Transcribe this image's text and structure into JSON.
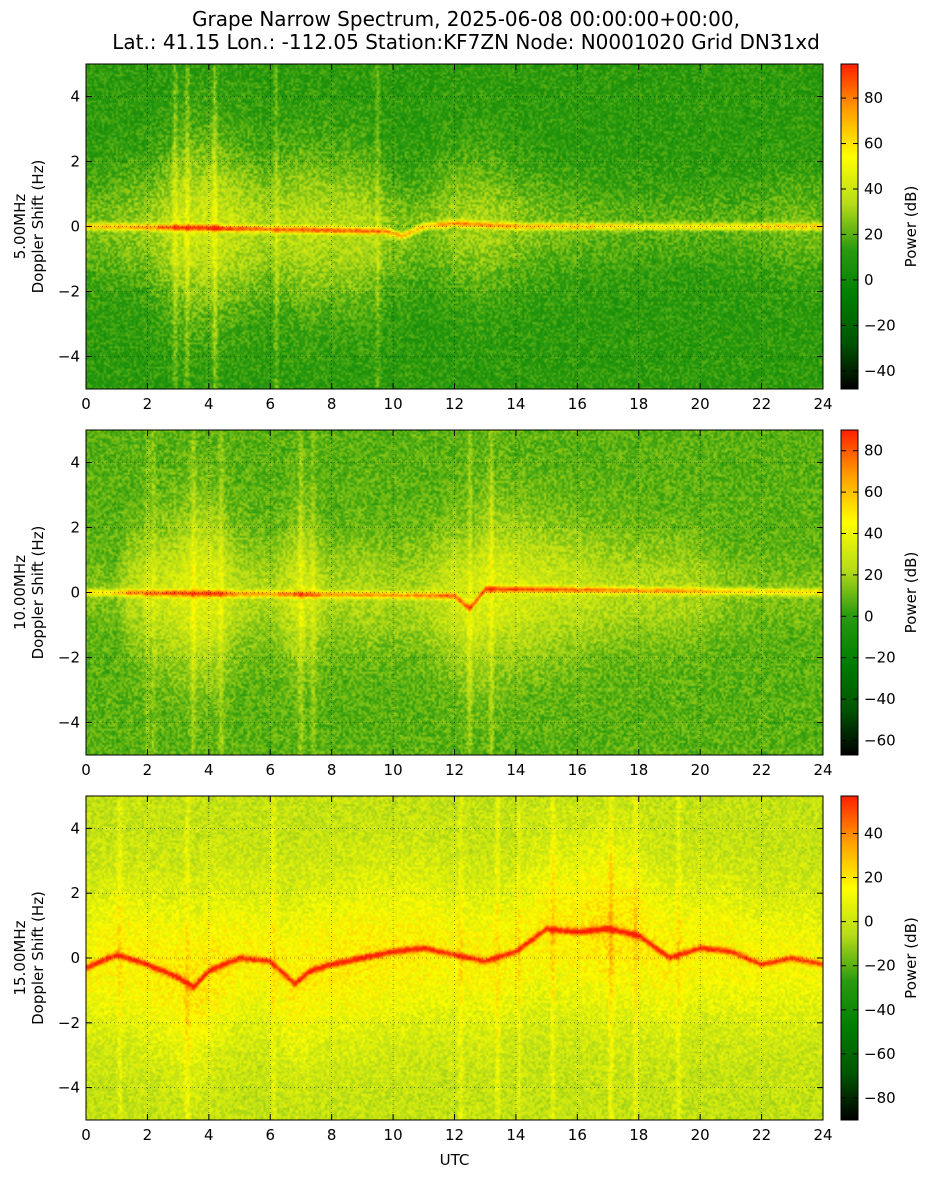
{
  "title_line1": "Grape Narrow Spectrum, 2025-06-08 00:00:00+00:00,",
  "title_line2": "Lat.: 41.15 Lon.: -112.05 Station:KF7ZN Node: N0001020 Grid DN31xd",
  "colors": {
    "colormap": [
      "#000000",
      "#005500",
      "#007e00",
      "#2a9a10",
      "#b7dc18",
      "#ffff00",
      "#ffa000",
      "#ff2000"
    ],
    "background": "#ffffff",
    "axis": "#000000",
    "grid": "#000000"
  },
  "chart_data": [
    {
      "type": "heatmap",
      "panel_label": "5.00MHz",
      "ylabel": "Doppler Shift (Hz)",
      "xlabel": "",
      "xlim": [
        0,
        24
      ],
      "ylim": [
        -5,
        5
      ],
      "xticks": [
        0,
        2,
        4,
        6,
        8,
        10,
        12,
        14,
        16,
        18,
        20,
        22,
        24
      ],
      "yticks": [
        -4,
        -2,
        0,
        2,
        4
      ],
      "grid": true,
      "colorbar": {
        "label": "Power (dB)",
        "range": [
          -48,
          95
        ],
        "ticks": [
          -40,
          -20,
          0,
          20,
          40,
          60,
          80
        ]
      },
      "features": {
        "background_level": 12,
        "carrier_level": 50,
        "activity": [
          [
            0,
            0.45
          ],
          [
            1,
            0.5
          ],
          [
            2,
            0.6
          ],
          [
            3,
            0.9
          ],
          [
            4,
            1.0
          ],
          [
            5,
            0.85
          ],
          [
            6,
            0.7
          ],
          [
            7,
            0.85
          ],
          [
            8,
            0.8
          ],
          [
            9,
            0.8
          ],
          [
            10,
            0.55
          ],
          [
            11,
            0.45
          ],
          [
            12,
            0.65
          ],
          [
            13,
            0.7
          ],
          [
            14,
            0.55
          ],
          [
            15,
            0.45
          ],
          [
            16,
            0.4
          ],
          [
            17,
            0.35
          ],
          [
            18,
            0.3
          ],
          [
            19,
            0.3
          ],
          [
            20,
            0.3
          ],
          [
            21,
            0.3
          ],
          [
            22,
            0.35
          ],
          [
            23,
            0.45
          ],
          [
            24,
            0.4
          ]
        ],
        "carrier_offset": [
          [
            0,
            0
          ],
          [
            4,
            -0.05
          ],
          [
            9.8,
            -0.15
          ],
          [
            10.3,
            -0.3
          ],
          [
            11,
            0
          ],
          [
            12,
            0.1
          ],
          [
            14,
            0
          ],
          [
            24,
            0
          ]
        ],
        "vertical_streaks": [
          2.9,
          3.3,
          4.2,
          6.2,
          9.5
        ]
      }
    },
    {
      "type": "heatmap",
      "panel_label": "10.00MHz",
      "ylabel": "Doppler Shift (Hz)",
      "xlabel": "",
      "xlim": [
        0,
        24
      ],
      "ylim": [
        -5,
        5
      ],
      "xticks": [
        0,
        2,
        4,
        6,
        8,
        10,
        12,
        14,
        16,
        18,
        20,
        22,
        24
      ],
      "yticks": [
        -4,
        -2,
        0,
        2,
        4
      ],
      "grid": true,
      "colorbar": {
        "label": "Power (dB)",
        "range": [
          -67,
          90
        ],
        "ticks": [
          -60,
          -40,
          -20,
          0,
          20,
          40,
          60,
          80
        ]
      },
      "features": {
        "background_level": 8,
        "carrier_level": 48,
        "activity": [
          [
            0,
            0.2
          ],
          [
            1,
            0.2
          ],
          [
            1.4,
            0.55
          ],
          [
            2,
            0.6
          ],
          [
            3,
            0.8
          ],
          [
            4,
            0.95
          ],
          [
            5,
            0.55
          ],
          [
            6,
            0.45
          ],
          [
            7,
            0.8
          ],
          [
            8,
            0.45
          ],
          [
            9,
            0.5
          ],
          [
            10,
            0.45
          ],
          [
            11,
            0.5
          ],
          [
            12,
            0.75
          ],
          [
            13,
            0.85
          ],
          [
            14,
            0.8
          ],
          [
            15,
            0.7
          ],
          [
            16,
            0.65
          ],
          [
            17,
            0.55
          ],
          [
            18,
            0.5
          ],
          [
            19,
            0.5
          ],
          [
            20,
            0.45
          ],
          [
            21,
            0.25
          ],
          [
            22,
            0.2
          ],
          [
            24,
            0.2
          ]
        ],
        "carrier_offset": [
          [
            0,
            0
          ],
          [
            12,
            -0.1
          ],
          [
            12.5,
            -0.5
          ],
          [
            13,
            0.1
          ],
          [
            14,
            0.1
          ],
          [
            24,
            0
          ]
        ],
        "vertical_streaks": [
          2.0,
          2.2,
          3.5,
          4.4,
          7.0,
          7.4,
          12.5,
          13.2
        ]
      }
    },
    {
      "type": "heatmap",
      "panel_label": "15.00MHz",
      "ylabel": "Doppler Shift (Hz)",
      "xlabel": "UTC",
      "xlim": [
        0,
        24
      ],
      "ylim": [
        -5,
        5
      ],
      "xticks": [
        0,
        2,
        4,
        6,
        8,
        10,
        12,
        14,
        16,
        18,
        20,
        22,
        24
      ],
      "yticks": [
        -4,
        -2,
        0,
        2,
        4
      ],
      "grid": true,
      "colorbar": {
        "label": "Power (dB)",
        "range": [
          -90,
          57
        ],
        "ticks": [
          -80,
          -60,
          -40,
          -20,
          0,
          20,
          40
        ]
      },
      "features": {
        "background_level": -2,
        "carrier_level": 30,
        "activity": [
          [
            0,
            0.7
          ],
          [
            1,
            0.75
          ],
          [
            2,
            0.8
          ],
          [
            3,
            0.85
          ],
          [
            4,
            0.9
          ],
          [
            5,
            0.75
          ],
          [
            6,
            0.7
          ],
          [
            7,
            0.85
          ],
          [
            8,
            0.8
          ],
          [
            9,
            0.85
          ],
          [
            10,
            0.8
          ],
          [
            11,
            0.8
          ],
          [
            12,
            0.7
          ],
          [
            13,
            0.75
          ],
          [
            14,
            0.7
          ],
          [
            15,
            0.8
          ],
          [
            16,
            0.85
          ],
          [
            17,
            0.95
          ],
          [
            18,
            0.85
          ],
          [
            19,
            0.75
          ],
          [
            20,
            0.7
          ],
          [
            21,
            0.7
          ],
          [
            22,
            0.65
          ],
          [
            23,
            0.65
          ],
          [
            24,
            0.6
          ]
        ],
        "carrier_offset": [
          [
            0,
            -0.3
          ],
          [
            1,
            0.1
          ],
          [
            2,
            -0.2
          ],
          [
            3,
            -0.6
          ],
          [
            3.5,
            -0.9
          ],
          [
            4,
            -0.4
          ],
          [
            5,
            0
          ],
          [
            6,
            -0.1
          ],
          [
            6.8,
            -0.8
          ],
          [
            7.3,
            -0.4
          ],
          [
            8,
            -0.2
          ],
          [
            9,
            0
          ],
          [
            10,
            0.2
          ],
          [
            11,
            0.3
          ],
          [
            12,
            0.1
          ],
          [
            13,
            -0.1
          ],
          [
            14,
            0.2
          ],
          [
            15,
            0.9
          ],
          [
            16,
            0.8
          ],
          [
            17,
            0.9
          ],
          [
            18,
            0.7
          ],
          [
            19,
            0
          ],
          [
            20,
            0.3
          ],
          [
            21,
            0.2
          ],
          [
            22,
            -0.2
          ],
          [
            23,
            0
          ],
          [
            24,
            -0.2
          ]
        ],
        "vertical_streaks": [
          1.1,
          3.3,
          6.1,
          12.2,
          13.4,
          14.1,
          15.2,
          17.1,
          17.9,
          19.3
        ]
      }
    }
  ]
}
